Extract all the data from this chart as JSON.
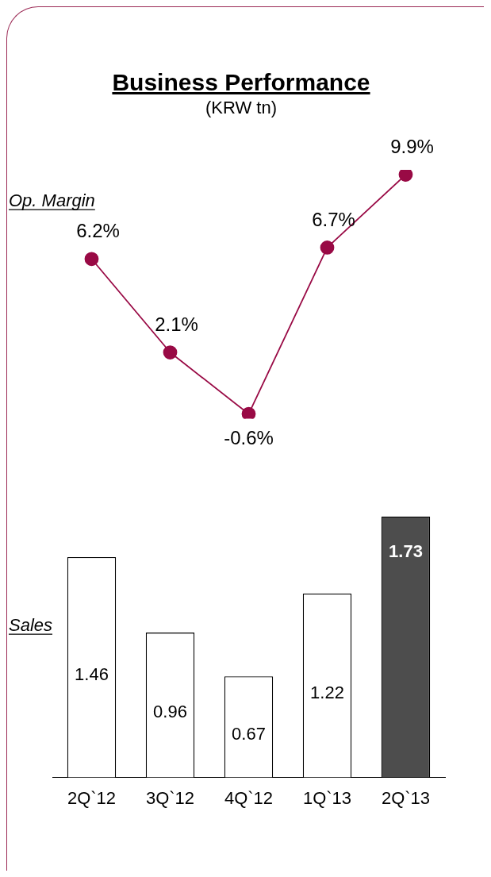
{
  "chart_data": [
    {
      "type": "line",
      "title": "Business Performance",
      "subtitle": "(KRW tn)",
      "categories": [
        null,
        null,
        null,
        null,
        null
      ],
      "series": [
        {
          "name": "Op. Margin",
          "color": "#990a45",
          "values": [
            6.2,
            2.1,
            -0.6,
            6.7,
            9.9
          ],
          "value_labels": [
            "6.2%",
            "2.1%",
            "-0.6%",
            "6.7%",
            "9.9%"
          ]
        }
      ],
      "marker": "circle",
      "legend": false,
      "grid": false
    },
    {
      "type": "bar",
      "categories": [
        "2Q`12",
        "3Q`12",
        "4Q`12",
        "1Q`13",
        "2Q`13"
      ],
      "series": [
        {
          "name": "Sales",
          "colors": [
            "#ffffff",
            "#ffffff",
            "#ffffff",
            "#ffffff",
            "#4d4d4d"
          ],
          "values": [
            1.46,
            0.96,
            0.67,
            1.22,
            1.73
          ],
          "value_labels": [
            "1.46",
            "0.96",
            "0.67",
            "1.22",
            "1.73"
          ]
        }
      ],
      "legend": false,
      "grid": false
    }
  ]
}
